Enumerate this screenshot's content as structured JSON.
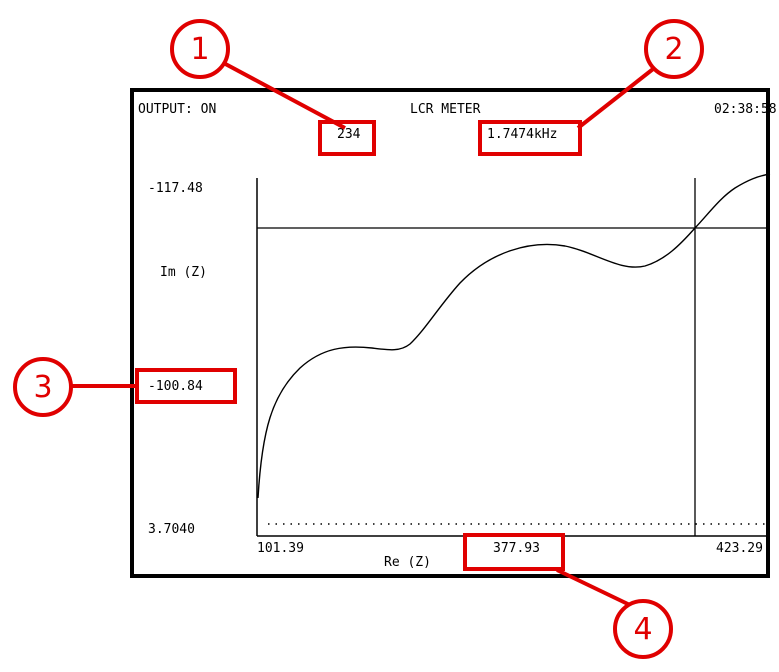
{
  "header": {
    "output_status": "OUTPUT: ON",
    "mode_title": "LCR METER",
    "clock": "02:38:58",
    "point_index": "234",
    "frequency": "1.7474kHz"
  },
  "y_axis": {
    "label": "Im (Z)",
    "max": "-117.48",
    "cursor": "-100.84",
    "min": "3.7040"
  },
  "x_axis": {
    "label": "Re (Z)",
    "min": "101.39",
    "cursor": "377.93",
    "max": "423.29"
  },
  "callouts": [
    "1",
    "2",
    "3",
    "4"
  ],
  "colors": {
    "annotation": "#e00000",
    "trace": "#000000"
  }
}
